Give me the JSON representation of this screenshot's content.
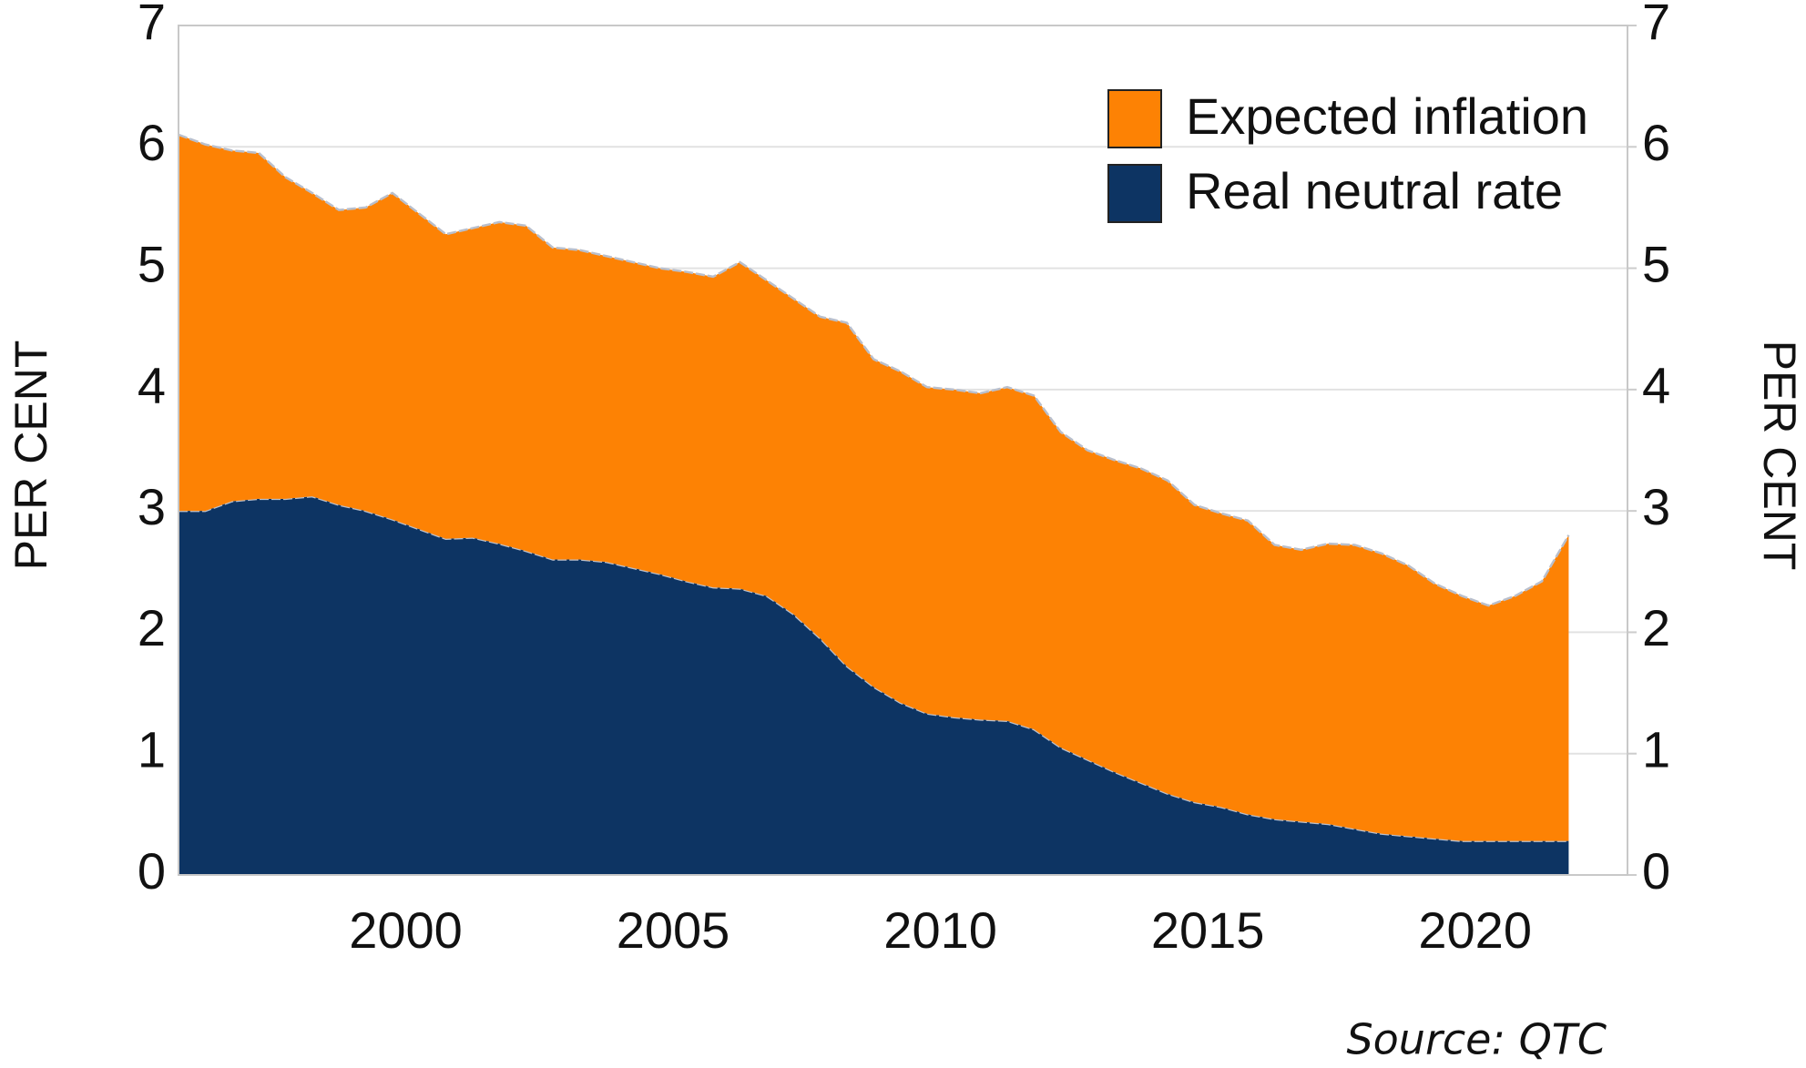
{
  "chart_data": {
    "type": "stacked_area",
    "ylabel": "PER CENT",
    "y2label": "PER CENT",
    "source": "Source: QTC",
    "x": [
      1995.75,
      1996.25,
      1996.75,
      1997.25,
      1997.75,
      1998.25,
      1998.75,
      1999.25,
      1999.75,
      2000.25,
      2000.75,
      2001.25,
      2001.75,
      2002.25,
      2002.75,
      2003.25,
      2003.75,
      2004.25,
      2004.75,
      2005.25,
      2005.75,
      2006.25,
      2006.75,
      2007.25,
      2007.75,
      2008.25,
      2008.75,
      2009.25,
      2009.75,
      2010.25,
      2010.75,
      2011.25,
      2011.75,
      2012.25,
      2012.75,
      2013.25,
      2013.75,
      2014.25,
      2014.75,
      2015.25,
      2015.75,
      2016.25,
      2016.75,
      2017.25,
      2017.75,
      2018.25,
      2018.75,
      2019.25,
      2019.75,
      2020.25,
      2020.75,
      2021.25,
      2021.75
    ],
    "series": [
      {
        "name": "Real neutral rate",
        "color": "#0d3463",
        "values": [
          3.0,
          3.0,
          3.08,
          3.1,
          3.1,
          3.12,
          3.05,
          3.0,
          2.93,
          2.85,
          2.77,
          2.78,
          2.73,
          2.67,
          2.6,
          2.6,
          2.58,
          2.53,
          2.48,
          2.42,
          2.37,
          2.36,
          2.3,
          2.15,
          1.95,
          1.72,
          1.55,
          1.42,
          1.33,
          1.3,
          1.28,
          1.27,
          1.2,
          1.05,
          0.95,
          0.85,
          0.76,
          0.67,
          0.6,
          0.56,
          0.5,
          0.46,
          0.44,
          0.42,
          0.38,
          0.34,
          0.32,
          0.3,
          0.28,
          0.28,
          0.28,
          0.28,
          0.28
        ]
      },
      {
        "name": "Expected inflation",
        "color": "#fd8204",
        "values": [
          3.1,
          3.02,
          2.89,
          2.85,
          2.65,
          2.5,
          2.43,
          2.5,
          2.69,
          2.6,
          2.51,
          2.55,
          2.65,
          2.68,
          2.57,
          2.55,
          2.52,
          2.52,
          2.52,
          2.55,
          2.56,
          2.69,
          2.6,
          2.6,
          2.65,
          2.83,
          2.7,
          2.73,
          2.69,
          2.7,
          2.69,
          2.75,
          2.75,
          2.6,
          2.55,
          2.57,
          2.59,
          2.58,
          2.45,
          2.42,
          2.42,
          2.26,
          2.24,
          2.31,
          2.34,
          2.31,
          2.23,
          2.1,
          2.02,
          1.94,
          2.02,
          2.14,
          2.52
        ]
      }
    ],
    "xlim": [
      1995.75,
      2022.85
    ],
    "xticks": [
      2000,
      2005,
      2010,
      2015,
      2020
    ],
    "ylim": [
      0,
      7
    ],
    "yticks": [
      0,
      1,
      2,
      3,
      4,
      5,
      6,
      7
    ],
    "y2lim": [
      0,
      7
    ],
    "y2ticks": [
      0,
      1,
      2,
      3,
      4,
      5,
      6,
      7
    ],
    "grid": true,
    "legend": "upper right"
  }
}
